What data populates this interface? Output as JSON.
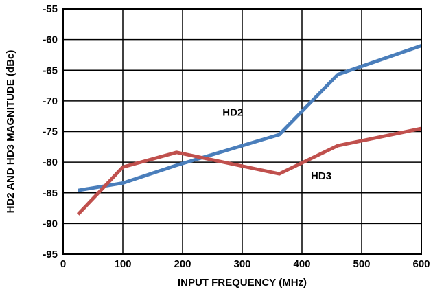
{
  "chart_data": {
    "type": "line",
    "xlabel": "INPUT FREQUENCY (MHz)",
    "ylabel": "HD2 AND HD3 MAGNITUDE (dBc)",
    "xlim": [
      0,
      600
    ],
    "ylim": [
      -95,
      -55
    ],
    "xticks": [
      0,
      100,
      200,
      300,
      400,
      500,
      600
    ],
    "yticks": [
      -55,
      -60,
      -65,
      -70,
      -75,
      -80,
      -85,
      -90,
      -95
    ],
    "grid": true,
    "series": [
      {
        "name": "HD2",
        "color": "#4a7ebb",
        "x": [
          25,
          100,
          190,
          362,
          460,
          600
        ],
        "y": [
          -84.6,
          -83.4,
          -80.5,
          -75.5,
          -65.7,
          -61.0
        ]
      },
      {
        "name": "HD3",
        "color": "#c0504d",
        "x": [
          25,
          100,
          190,
          362,
          460,
          600
        ],
        "y": [
          -88.5,
          -80.8,
          -78.4,
          -81.9,
          -77.3,
          -74.5
        ]
      }
    ]
  }
}
